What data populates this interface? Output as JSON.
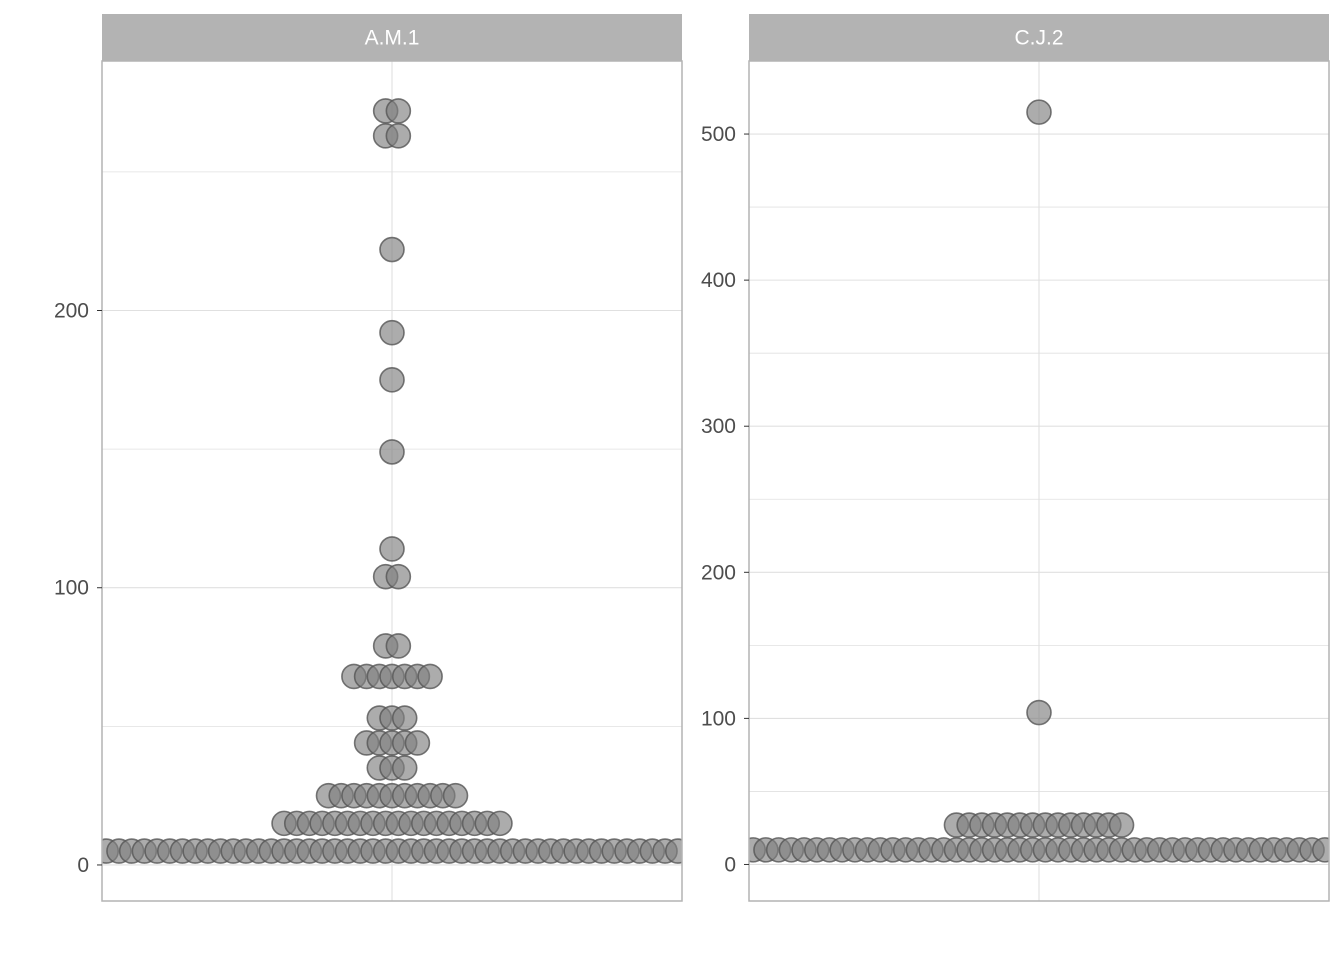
{
  "chart_data": {
    "type": "dotplot",
    "grid": true,
    "colors": {
      "dot_fill": "#808080",
      "dot_stroke": "#555555",
      "strip_fill": "#b3b3b3",
      "panel_border": "#b3b3b3",
      "grid": "#e0e0e0"
    },
    "panels": [
      {
        "title": "A.M.1",
        "ylim": [
          -13,
          290
        ],
        "yticks": [
          0,
          100,
          200
        ],
        "ytick_labels": [
          "0",
          "100",
          "200"
        ],
        "ybreaks_minor": [
          50,
          150,
          250
        ],
        "bins": [
          {
            "y": 5,
            "count": 46
          },
          {
            "y": 15,
            "count": 18
          },
          {
            "y": 25,
            "count": 11
          },
          {
            "y": 35,
            "count": 3
          },
          {
            "y": 44,
            "count": 5
          },
          {
            "y": 53,
            "count": 3
          },
          {
            "y": 68,
            "count": 7
          },
          {
            "y": 79,
            "count": 2
          },
          {
            "y": 104,
            "count": 2
          },
          {
            "y": 114,
            "count": 1
          },
          {
            "y": 149,
            "count": 1
          },
          {
            "y": 175,
            "count": 1
          },
          {
            "y": 192,
            "count": 1
          },
          {
            "y": 222,
            "count": 1
          },
          {
            "y": 263,
            "count": 2
          },
          {
            "y": 272,
            "count": 2
          }
        ]
      },
      {
        "title": "C.J.2",
        "ylim": [
          -25,
          550
        ],
        "yticks": [
          0,
          100,
          200,
          300,
          400,
          500
        ],
        "ytick_labels": [
          "0",
          "100",
          "200",
          "300",
          "400",
          "500"
        ],
        "ybreaks_minor": [
          50,
          150,
          250,
          350,
          450
        ],
        "bins": [
          {
            "y": 10,
            "count": 46
          },
          {
            "y": 27,
            "count": 14
          },
          {
            "y": 104,
            "count": 1
          },
          {
            "y": 515,
            "count": 1
          }
        ]
      }
    ]
  }
}
